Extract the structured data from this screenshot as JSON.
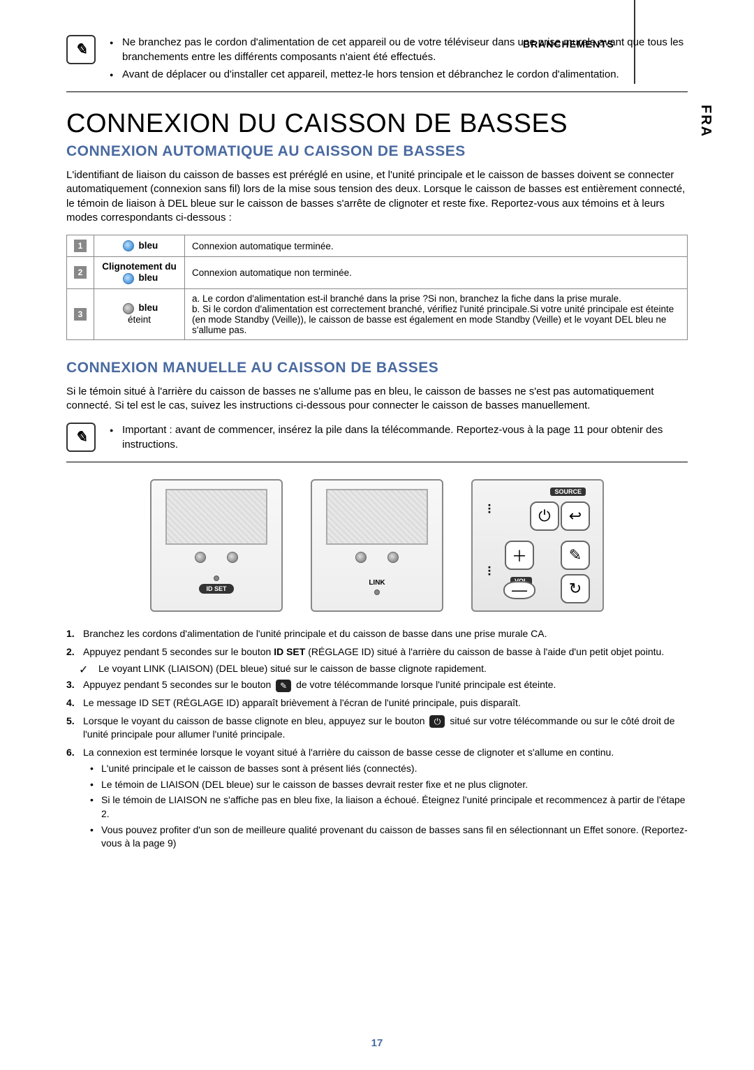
{
  "header": {
    "section": "BRANCHEMENTS",
    "lang_tab": "FRA"
  },
  "top_notes": [
    "Ne branchez pas le cordon d'alimentation de cet appareil ou de votre téléviseur dans une prise murale avant que tous les branchements entre les différents composants n'aient été effectués.",
    "Avant de déplacer ou d'installer cet appareil, mettez-le hors tension et débranchez le cordon d'alimentation."
  ],
  "h1": "CONNEXION DU CAISSON DE BASSES",
  "auto": {
    "title": "CONNEXION AUTOMATIQUE AU CAISSON DE BASSES",
    "intro": "L'identifiant de liaison du caisson de basses est préréglé en usine, et l'unité principale et le caisson de basses doivent se connecter automatiquement (connexion sans fil) lors de la mise sous tension des deux. Lorsque le caisson de basses est entièrement connecté, le témoin de liaison à DEL bleue sur le caisson de basses s'arrête de clignoter et reste fixe. Reportez-vous aux témoins et à leurs modes correspondants ci-dessous :",
    "rows": [
      {
        "num": "1",
        "led_html": "on",
        "led_label_after": "bleu",
        "desc": "Connexion automatique terminée."
      },
      {
        "num": "2",
        "led_label_before": "Clignotement du",
        "led_html": "on",
        "led_label_after": "bleu",
        "desc": "Connexion automatique non terminée."
      },
      {
        "num": "3",
        "led_html": "off",
        "led_label_after": "bleu",
        "led_sub": "éteint",
        "desc": "a. Le cordon d'alimentation est-il branché dans la prise ?Si non, branchez la fiche dans la prise murale.\nb. Si le cordon d'alimentation est correctement branché, vérifiez l'unité principale.Si votre unité principale est éteinte (en mode Standby (Veille)), le caisson de basse est également en mode Standby (Veille) et le voyant DEL bleu ne s'allume pas."
      }
    ]
  },
  "manual": {
    "title": "CONNEXION MANUELLE AU CAISSON DE BASSES",
    "intro": "Si le témoin situé à l'arrière du caisson de basses ne s'allume pas en bleu, le caisson de basses ne s'est pas automatiquement connecté. Si tel est le cas, suivez les instructions ci-dessous pour connecter le caisson de basses manuellement.",
    "note": "Important : avant de commencer, insérez la pile dans la télécommande. Reportez-vous à la page 11 pour obtenir des instructions."
  },
  "diagrams": {
    "d1_label": "ID SET",
    "d2_label": "LINK",
    "remote": {
      "source": "SOURCE",
      "vol": "VOL"
    }
  },
  "steps": {
    "s1": "Branchez les cordons d'alimentation de l'unité principale et du caisson de basse dans une prise murale CA.",
    "s2a": "Appuyez pendant 5 secondes sur le bouton ",
    "s2b": "ID SET",
    "s2c": " (RÉGLAGE ID) situé à l'arrière du caisson de basse à l'aide d'un petit objet pointu.",
    "check": "Le voyant LINK (LIAISON) (DEL bleue) situé sur le caisson de basse clignote rapidement.",
    "s3a": "Appuyez pendant 5 secondes sur le bouton ",
    "s3b": " de votre télécommande lorsque l'unité principale est éteinte.",
    "s4": "Le message ID SET (RÉGLAGE ID) apparaît brièvement à l'écran de l'unité principale, puis disparaît.",
    "s5a": "Lorsque le voyant du caisson de basse clignote en bleu, appuyez sur le bouton ",
    "s5b": " situé sur votre télécommande ou sur le côté droit de l'unité principale pour allumer l'unité principale.",
    "s6": "La connexion est terminée lorsque le voyant situé à l'arrière du caisson de basse cesse de clignoter et s'allume en continu.",
    "sub": [
      "L'unité principale et le caisson de basses sont à présent liés (connectés).",
      "Le témoin de LIAISON (DEL bleue) sur le caisson de basses devrait rester fixe et ne plus clignoter.",
      "Si le témoin de LIAISON ne s'affiche pas en bleu fixe, la liaison a échoué. Éteignez l'unité principale et recommencez à partir de l'étape 2.",
      "Vous pouvez profiter d'un son de meilleure qualité provenant du caisson de basses sans fil en sélectionnant un Effet sonore. (Reportez-vous à la page 9)"
    ]
  },
  "colors": {
    "heading_blue": "#4a6aa0"
  },
  "page": "17"
}
